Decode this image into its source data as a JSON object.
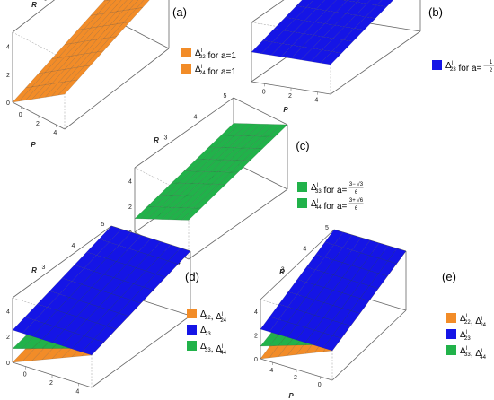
{
  "colors": {
    "orange": "#F28C28",
    "blue": "#1515E6",
    "green": "#21B24A",
    "grid": "#333333"
  },
  "chart_data": [
    {
      "type": "surface3d",
      "panel_label": "(a)",
      "xlabel": "P",
      "ylabel": "R",
      "x_ticks": [
        "0",
        "2",
        "4"
      ],
      "y_ticks": [
        "0",
        "2",
        "4"
      ],
      "top_ticks": [
        "3",
        "4",
        "5"
      ],
      "xlim": [
        0,
        5
      ],
      "ylim": [
        0,
        5
      ],
      "zlim": [
        0,
        5
      ],
      "surfaces": [
        {
          "color": "orange",
          "corners": [
            [
              0,
              0,
              0
            ],
            [
              5,
              0,
              2.5
            ],
            [
              0,
              5,
              2.5
            ],
            [
              5,
              5,
              5
            ]
          ]
        }
      ],
      "legend": [
        {
          "color": "orange",
          "sup": "l",
          "sub": "22",
          "text": " for a=1"
        },
        {
          "color": "orange",
          "sup": "l",
          "sub": "24",
          "text": " for a=1"
        }
      ]
    },
    {
      "type": "surface3d",
      "panel_label": "(b)",
      "xlabel": "P",
      "ylabel": "R",
      "x_ticks": [
        "0",
        "2",
        "4"
      ],
      "y_ticks": [],
      "top_ticks": [
        "3",
        "4",
        "5"
      ],
      "xlim": [
        0,
        5
      ],
      "ylim": [
        0,
        5
      ],
      "zlim": [
        0,
        5
      ],
      "surfaces": [
        {
          "color": "blue",
          "corners": [
            [
              0,
              0,
              2.5
            ],
            [
              5,
              0,
              2.5
            ],
            [
              0,
              5,
              5
            ],
            [
              5,
              5,
              5
            ]
          ]
        }
      ],
      "legend": [
        {
          "color": "blue",
          "sup": "l",
          "sub": "23",
          "text": " for a=",
          "frac_num": "1",
          "frac_den": "2"
        }
      ]
    },
    {
      "type": "surface3d",
      "panel_label": "(c)",
      "xlabel": "P",
      "ylabel": "R",
      "x_ticks": [
        "0",
        "2",
        "4"
      ],
      "y_ticks": [
        "0",
        "2",
        "4"
      ],
      "top_ticks": [
        "3",
        "4",
        "5"
      ],
      "xlim": [
        0,
        5
      ],
      "ylim": [
        0,
        5
      ],
      "zlim": [
        0,
        5
      ],
      "surfaces": [
        {
          "color": "green",
          "corners": [
            [
              0,
              0,
              1.06
            ],
            [
              5,
              0,
              3.03
            ],
            [
              0,
              5,
              3.03
            ],
            [
              5,
              5,
              5
            ]
          ]
        }
      ],
      "legend": [
        {
          "color": "green",
          "sup": "l",
          "sub": "33",
          "text": " for a=",
          "frac_num": "3− √3",
          "frac_den": "6"
        },
        {
          "color": "green",
          "sup": "l",
          "sub": "44",
          "text": " for a=",
          "frac_num": "3+ √6",
          "frac_den": "6"
        }
      ]
    },
    {
      "type": "surface3d",
      "panel_label": "(d)",
      "xlabel": "P",
      "ylabel": "R",
      "x_ticks": [
        "0",
        "2",
        "4"
      ],
      "y_ticks": [
        "0",
        "2",
        "4"
      ],
      "top_ticks": [
        "3",
        "4",
        "5"
      ],
      "xlim": [
        0,
        5
      ],
      "ylim": [
        0,
        5
      ],
      "zlim": [
        0,
        5
      ],
      "surfaces": [
        {
          "color": "orange",
          "corners": [
            [
              0,
              0,
              0
            ],
            [
              5,
              0,
              2.5
            ],
            [
              0,
              5,
              2.5
            ],
            [
              5,
              5,
              5
            ]
          ]
        },
        {
          "color": "green",
          "corners": [
            [
              0,
              0,
              1.06
            ],
            [
              5,
              0,
              3.03
            ],
            [
              0,
              5,
              3.03
            ],
            [
              5,
              5,
              5
            ]
          ]
        },
        {
          "color": "blue",
          "corners": [
            [
              0,
              0,
              2.5
            ],
            [
              5,
              0,
              2.5
            ],
            [
              0,
              5,
              5
            ],
            [
              5,
              5,
              5
            ]
          ]
        }
      ],
      "legend": [
        {
          "color": "orange",
          "parts": [
            [
              "l",
              "22"
            ],
            [
              "l",
              "24"
            ]
          ]
        },
        {
          "color": "blue",
          "parts": [
            [
              "l",
              "23"
            ]
          ]
        },
        {
          "color": "green",
          "parts": [
            [
              "l",
              "33"
            ],
            [
              "l",
              "44"
            ]
          ]
        }
      ]
    },
    {
      "type": "surface3d",
      "panel_label": "(e)",
      "rotated": true,
      "xlabel": "P",
      "ylabel": "R",
      "x_ticks": [
        "4",
        "2",
        "0"
      ],
      "y_ticks": [
        "0",
        "2",
        "4"
      ],
      "top_ticks": [
        "3",
        "4",
        "5"
      ],
      "xlim": [
        0,
        5
      ],
      "ylim": [
        0,
        5
      ],
      "zlim": [
        0,
        5
      ],
      "surfaces": [
        {
          "color": "orange",
          "corners": [
            [
              0,
              0,
              0
            ],
            [
              5,
              0,
              2.5
            ],
            [
              0,
              5,
              2.5
            ],
            [
              5,
              5,
              5
            ]
          ]
        },
        {
          "color": "green",
          "corners": [
            [
              0,
              0,
              1.06
            ],
            [
              5,
              0,
              3.03
            ],
            [
              0,
              5,
              3.03
            ],
            [
              5,
              5,
              5
            ]
          ]
        },
        {
          "color": "blue",
          "corners": [
            [
              0,
              0,
              2.5
            ],
            [
              5,
              0,
              2.5
            ],
            [
              0,
              5,
              5
            ],
            [
              5,
              5,
              5
            ]
          ]
        }
      ],
      "legend": [
        {
          "color": "orange",
          "parts": [
            [
              "l",
              "22"
            ],
            [
              "l",
              "24"
            ]
          ]
        },
        {
          "color": "blue",
          "parts": [
            [
              "l",
              "23"
            ]
          ]
        },
        {
          "color": "green",
          "parts": [
            [
              "l",
              "33"
            ],
            [
              "l",
              "44"
            ]
          ]
        }
      ]
    }
  ]
}
